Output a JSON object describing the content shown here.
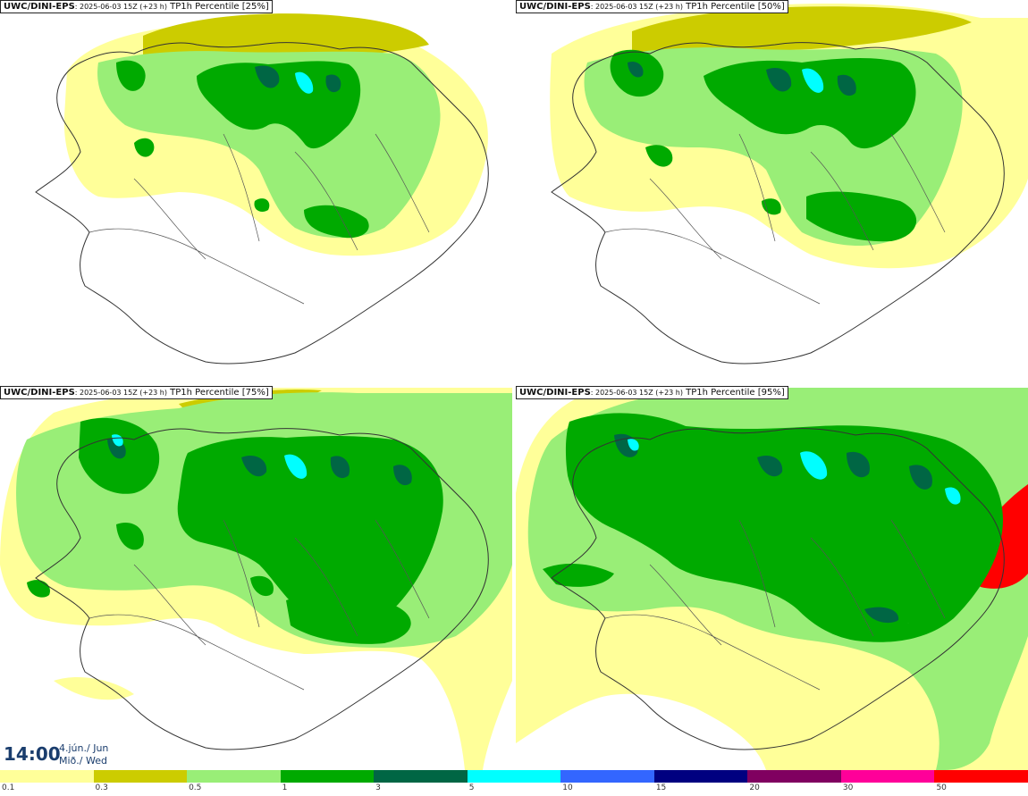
{
  "panels": [
    {
      "model": "UWC/DINI-EPS",
      "run": ": 2025-06-03 15Z (+23 h)",
      "field": " TP1h Percentile [25%]"
    },
    {
      "model": "UWC/DINI-EPS",
      "run": ": 2025-06-03 15Z (+23 h)",
      "field": " TP1h Percentile [50%]"
    },
    {
      "model": "UWC/DINI-EPS",
      "run": ": 2025-06-03 15Z (+23 h)",
      "field": " TP1h Percentile [75%]"
    },
    {
      "model": "UWC/DINI-EPS",
      "run": ": 2025-06-03 15Z (+23 h)",
      "field": " TP1h Percentile [95%]"
    }
  ],
  "time": {
    "clock": "14:00",
    "date_line1": "4.jún./ Jun",
    "date_line2": "Mið./ Wed"
  },
  "legend": {
    "colors": [
      "#ffff99",
      "#cccc00",
      "#99ee77",
      "#00aa00",
      "#006644",
      "#00ffff",
      "#3366ff",
      "#000080",
      "#800060",
      "#ff0099",
      "#ff0000"
    ],
    "labels": [
      "0.1",
      "0.3",
      "0.5",
      "1",
      "3",
      "5",
      "10",
      "15",
      "20",
      "30",
      "50"
    ]
  },
  "layers": {
    "yellow": "#ffff99",
    "olive": "#cccc00",
    "light_green": "#99ee77",
    "green": "#00aa00",
    "dark_green": "#006644",
    "cyan": "#00ffff",
    "red": "#ff0000",
    "coast": "#333333"
  }
}
